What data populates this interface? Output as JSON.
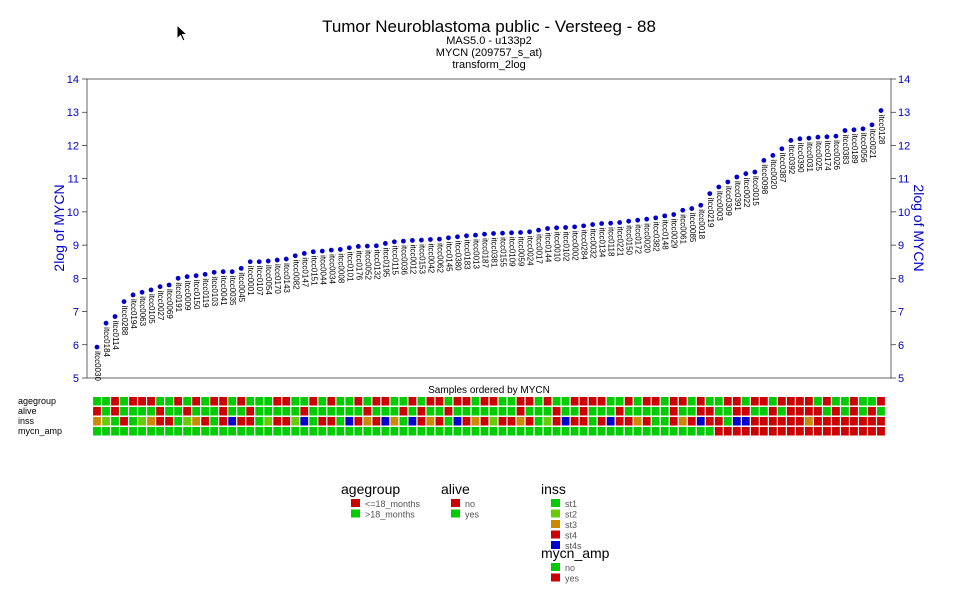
{
  "chart_data": {
    "type": "scatter",
    "title": "Tumor Neuroblastoma public - Versteeg - 88",
    "subtitles": [
      "MAS5.0 - u133p2",
      "MYCN (209757_s_at)",
      "transform_2log"
    ],
    "ylabel_left": "2log of MYCN",
    "ylabel_right": "2log of MYCN",
    "xlabel": "Samples ordered by MYCN",
    "ylim": [
      5,
      14
    ],
    "yticks": [
      5,
      6,
      7,
      8,
      9,
      10,
      11,
      12,
      13,
      14
    ],
    "point_color": "#0000cc",
    "samples": [
      "itcc0030",
      "itcc0184",
      "itcc0114",
      "itcc0288",
      "itcc0194",
      "itcc0063",
      "itcc0105",
      "itcc0027",
      "itcc0069",
      "itcc0191",
      "itcc0009",
      "itcc0150",
      "itcc0119",
      "itcc0103",
      "itcc0041",
      "itcc0035",
      "itcc0045",
      "itcc0001",
      "itcc0107",
      "itcc0054",
      "itcc0170",
      "itcc0143",
      "itcc0082",
      "itcc0147",
      "itcc0151",
      "itcc0044",
      "itcc0034",
      "itcc0008",
      "itcc0101",
      "itcc0176",
      "itcc0052",
      "itcc0132",
      "itcc0195",
      "itcc0115",
      "itcc0036",
      "itcc0012",
      "itcc0153",
      "itcc0042",
      "itcc0062",
      "itcc0145",
      "itcc0380",
      "itcc0183",
      "itcc0013",
      "itcc0187",
      "itcc0381",
      "itcc0155",
      "itcc0109",
      "itcc0059",
      "itcc0024",
      "itcc0017",
      "itcc0144",
      "itcc0010",
      "itcc0102",
      "itcc0002",
      "itcc0284",
      "itcc0032",
      "itcc0134",
      "itcc0118",
      "itcc0221",
      "itcc0150",
      "itcc0172",
      "itcc0020",
      "itcc0382",
      "itcc0148",
      "itcc0029",
      "itcc0061",
      "itcc0085",
      "itcc0018",
      "itcc0219",
      "itcc0003",
      "itcc0309",
      "itcc0391",
      "itcc0022",
      "itcc0015",
      "itcc0098",
      "itcc0020",
      "itcc0387",
      "itcc0392",
      "itcc0390",
      "itcc0031",
      "itcc0025",
      "itcc0174",
      "itcc0026",
      "itcc0383",
      "itcc0189",
      "itcc0056",
      "itcc0021",
      "itcc0128"
    ],
    "values": [
      5.93,
      6.65,
      6.85,
      7.3,
      7.5,
      7.58,
      7.65,
      7.75,
      7.8,
      8.0,
      8.05,
      8.08,
      8.12,
      8.18,
      8.2,
      8.2,
      8.3,
      8.5,
      8.5,
      8.52,
      8.55,
      8.58,
      8.68,
      8.75,
      8.8,
      8.82,
      8.85,
      8.87,
      8.92,
      8.96,
      8.97,
      8.98,
      9.05,
      9.1,
      9.12,
      9.14,
      9.15,
      9.17,
      9.18,
      9.22,
      9.25,
      9.28,
      9.3,
      9.33,
      9.35,
      9.36,
      9.37,
      9.38,
      9.4,
      9.45,
      9.5,
      9.52,
      9.53,
      9.55,
      9.58,
      9.62,
      9.65,
      9.66,
      9.68,
      9.72,
      9.75,
      9.78,
      9.82,
      9.88,
      9.92,
      10.05,
      10.1,
      10.2,
      10.55,
      10.75,
      10.9,
      11.05,
      11.15,
      11.2,
      11.55,
      11.7,
      11.9,
      12.15,
      12.2,
      12.22,
      12.25,
      12.26,
      12.28,
      12.45,
      12.47,
      12.5,
      12.62,
      13.05
    ],
    "tracks": {
      "names": [
        "agegroup",
        "alive",
        "inss",
        "mycn_amp"
      ],
      "colors": {
        "agegroup": {
          "<=18_months": "#cc0000",
          ">18_months": "#00cc00"
        },
        "alive": {
          "no": "#cc0000",
          "yes": "#00cc00"
        },
        "inss": {
          "st1": "#00cc00",
          "st2": "#66cc00",
          "st3": "#cc8800",
          "st4": "#cc0000",
          "st4s": "#0000cc"
        },
        "mycn_amp": {
          "no": "#00cc00",
          "yes": "#cc0000"
        }
      },
      "agegroup": "GGRGRRRGGRGRGRRGRGGGRRGGRGRGGRGRRGGRGRRGRRGRRGGRRGRGGRRRRGGRGRRGRRGRGGRRGRRGRRRRGRGGRGGR",
      "alive": "RGRGGGGRGGRGGGRGGRGGGGGRGGGGGGRGGGRGRGGRGGGGGGGRGGGRGGRGGGRGGGGGRGGRRGGRRGGRGRRRRGRGRGRG",
      "inss": "OLGRGLORRGLORGRBRRGLRRLBGRRGBRORBOGBRORGBRORLRRORGLRBRRGRBRRORGGRORBRRGBBRRRRRRORRRRRRRR",
      "mycn_amp": "GGGGGGGGGGGGGGGGGGGGGGGGGGGGGGGGGGGGGGGGGGGGGGGGGGGGGGGGGGGGGGGGGGGGGRRRRRRRRRRRRRRRRRRRR"
    },
    "legend": [
      {
        "title": "agegroup",
        "items": [
          {
            "label": "<=18_months",
            "color": "#cc0000"
          },
          {
            "label": ">18_months",
            "color": "#00cc00"
          }
        ]
      },
      {
        "title": "alive",
        "items": [
          {
            "label": "no",
            "color": "#cc0000"
          },
          {
            "label": "yes",
            "color": "#00cc00"
          }
        ]
      },
      {
        "title": "inss",
        "items": [
          {
            "label": "st1",
            "color": "#00cc00"
          },
          {
            "label": "st2",
            "color": "#66cc00"
          },
          {
            "label": "st3",
            "color": "#cc8800"
          },
          {
            "label": "st4",
            "color": "#cc0000"
          },
          {
            "label": "st4s",
            "color": "#0000cc"
          }
        ]
      },
      {
        "title": "mycn_amp",
        "items": [
          {
            "label": "no",
            "color": "#00cc00"
          },
          {
            "label": "yes",
            "color": "#cc0000"
          }
        ]
      }
    ]
  }
}
